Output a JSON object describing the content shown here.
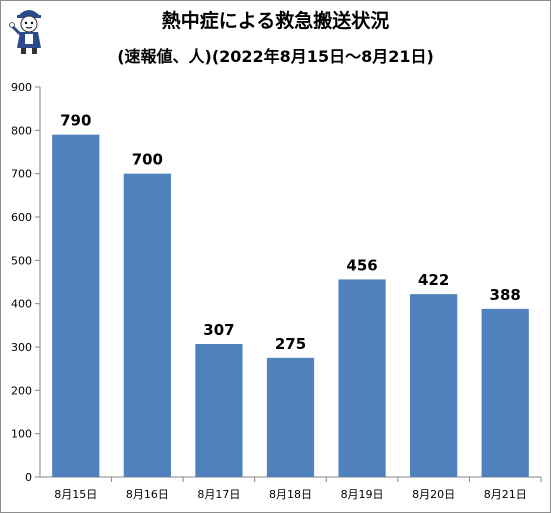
{
  "chart_data": {
    "type": "bar",
    "title": "熱中症による救急搬送状況",
    "subtitle": "(速報値、人)(2022年8月15日～8月21日)",
    "categories": [
      "8月15日",
      "8月16日",
      "8月17日",
      "8月18日",
      "8月19日",
      "8月20日",
      "8月21日"
    ],
    "values": [
      790,
      700,
      307,
      275,
      456,
      422,
      388
    ],
    "data_labels": [
      "790",
      "700",
      "307",
      "275",
      "456",
      "422",
      "388"
    ],
    "ylim": [
      0,
      900
    ],
    "yticks": [
      0,
      100,
      200,
      300,
      400,
      500,
      600,
      700,
      800,
      900
    ],
    "grid": false,
    "legend": "none",
    "bar_color": "#4f81bd",
    "xlabel": "",
    "ylabel": ""
  }
}
